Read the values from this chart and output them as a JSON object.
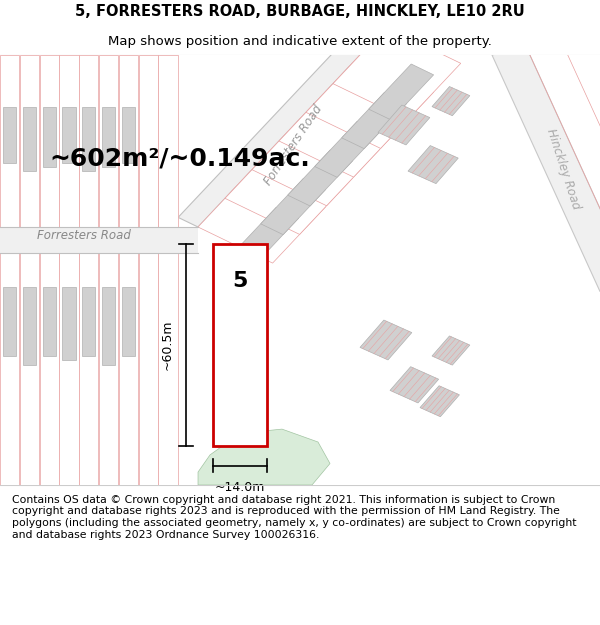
{
  "title_line1": "5, FORRESTERS ROAD, BURBAGE, HINCKLEY, LE10 2RU",
  "title_line2": "Map shows position and indicative extent of the property.",
  "area_text": "~602m²/~0.149ac.",
  "number_label": "5",
  "dim_height": "~60.5m",
  "dim_width": "~14.0m",
  "road_label_left": "Forresters Road",
  "road_label_diag": "Forresters Road",
  "road_label_hinckley": "Hinckley Road",
  "footer_text": "Contains OS data © Crown copyright and database right 2021. This information is subject to Crown copyright and database rights 2023 and is reproduced with the permission of HM Land Registry. The polygons (including the associated geometry, namely x, y co-ordinates) are subject to Crown copyright and database rights 2023 Ordnance Survey 100026316.",
  "bg_color": "#ffffff",
  "map_bg": "#ffffff",
  "plot_outline": "#cc0000",
  "line_pink": "#e8a0a0",
  "building_fill": "#d0d0d0",
  "building_edge": "#b0b0b0",
  "green_fill": "#d0e8d0",
  "road_gray": "#e8e8e8",
  "footer_fontsize": 7.8,
  "title_fontsize": 10.5,
  "subtitle_fontsize": 9.5,
  "area_fontsize": 18,
  "dim_fontsize": 9,
  "number_fontsize": 16,
  "road_label_fontsize": 8.5
}
